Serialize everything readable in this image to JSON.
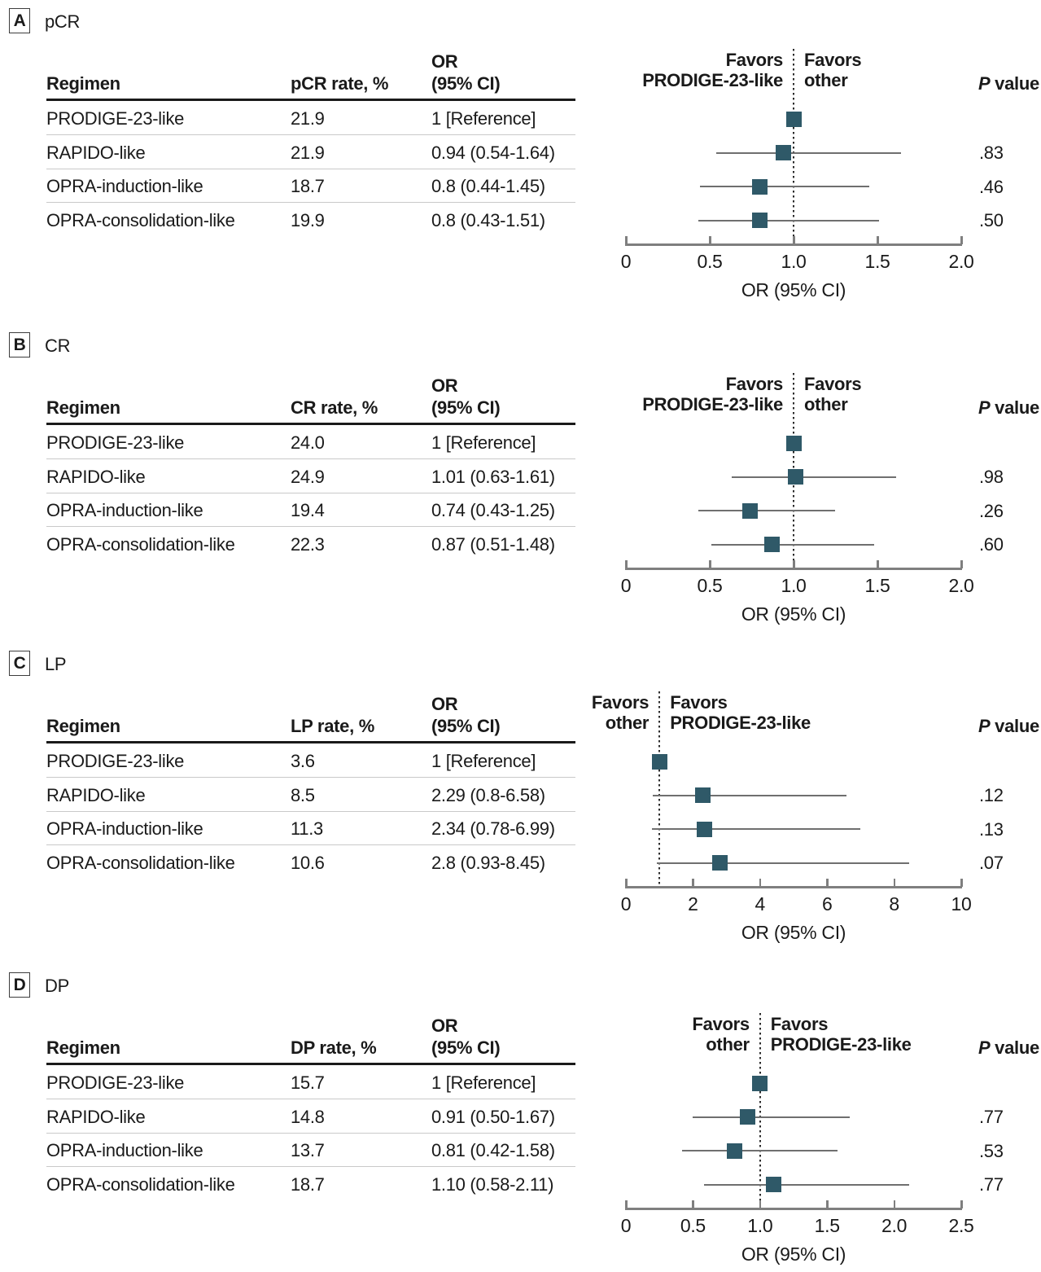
{
  "figure": {
    "marker_color": "#2f5968",
    "ci_color": "#6f6f6f",
    "axis_color": "#7f7f7f",
    "p_header_italic": "P",
    "p_header_rest": " value"
  },
  "chart_data": [
    {
      "type": "scatter",
      "subtype": "forest",
      "panel": "A",
      "title": "pCR",
      "xlabel": "OR (95% CI)",
      "xlim": [
        0,
        2.0
      ],
      "xticks": [
        0,
        0.5,
        1.0,
        1.5,
        2.0
      ],
      "xtick_labels": [
        "0",
        "0.5",
        "1.0",
        "1.5",
        "2.0"
      ],
      "ref_line": 1.0,
      "favors_left": [
        "Favors",
        "PRODIGE-23-like"
      ],
      "favors_right": [
        "Favors",
        "other"
      ],
      "col_headers": [
        "Regimen",
        "pCR rate, %",
        "OR",
        "(95% CI)"
      ],
      "rows": [
        {
          "regimen": "PRODIGE-23-like",
          "rate": "21.9",
          "or_ci": "1 [Reference]",
          "or": 1,
          "lo": null,
          "hi": null,
          "p": ""
        },
        {
          "regimen": "RAPIDO-like",
          "rate": "21.9",
          "or_ci": "0.94 (0.54-1.64)",
          "or": 0.94,
          "lo": 0.54,
          "hi": 1.64,
          "p": ".83"
        },
        {
          "regimen": "OPRA-induction-like",
          "rate": "18.7",
          "or_ci": "0.8 (0.44-1.45)",
          "or": 0.8,
          "lo": 0.44,
          "hi": 1.45,
          "p": ".46"
        },
        {
          "regimen": "OPRA-consolidation-like",
          "rate": "19.9",
          "or_ci": "0.8 (0.43-1.51)",
          "or": 0.8,
          "lo": 0.43,
          "hi": 1.51,
          "p": ".50"
        }
      ]
    },
    {
      "type": "scatter",
      "subtype": "forest",
      "panel": "B",
      "title": "CR",
      "xlabel": "OR (95% CI)",
      "xlim": [
        0,
        2.0
      ],
      "xticks": [
        0,
        0.5,
        1.0,
        1.5,
        2.0
      ],
      "xtick_labels": [
        "0",
        "0.5",
        "1.0",
        "1.5",
        "2.0"
      ],
      "ref_line": 1.0,
      "favors_left": [
        "Favors",
        "PRODIGE-23-like"
      ],
      "favors_right": [
        "Favors",
        "other"
      ],
      "col_headers": [
        "Regimen",
        "CR rate, %",
        "OR",
        "(95% CI)"
      ],
      "rows": [
        {
          "regimen": "PRODIGE-23-like",
          "rate": "24.0",
          "or_ci": "1 [Reference]",
          "or": 1,
          "lo": null,
          "hi": null,
          "p": ""
        },
        {
          "regimen": "RAPIDO-like",
          "rate": "24.9",
          "or_ci": "1.01 (0.63-1.61)",
          "or": 1.01,
          "lo": 0.63,
          "hi": 1.61,
          "p": ".98"
        },
        {
          "regimen": "OPRA-induction-like",
          "rate": "19.4",
          "or_ci": "0.74 (0.43-1.25)",
          "or": 0.74,
          "lo": 0.43,
          "hi": 1.25,
          "p": ".26"
        },
        {
          "regimen": "OPRA-consolidation-like",
          "rate": "22.3",
          "or_ci": "0.87 (0.51-1.48)",
          "or": 0.87,
          "lo": 0.51,
          "hi": 1.48,
          "p": ".60"
        }
      ]
    },
    {
      "type": "scatter",
      "subtype": "forest",
      "panel": "C",
      "title": "LP",
      "xlabel": "OR (95% CI)",
      "xlim": [
        0,
        10
      ],
      "xticks": [
        0,
        2,
        4,
        6,
        8,
        10
      ],
      "xtick_labels": [
        "0",
        "2",
        "4",
        "6",
        "8",
        "10"
      ],
      "ref_line": 1.0,
      "favors_left": [
        "Favors",
        "other"
      ],
      "favors_right": [
        "Favors",
        "PRODIGE-23-like"
      ],
      "col_headers": [
        "Regimen",
        "LP rate, %",
        "OR",
        "(95% CI)"
      ],
      "rows": [
        {
          "regimen": "PRODIGE-23-like",
          "rate": "3.6",
          "or_ci": "1 [Reference]",
          "or": 1,
          "lo": null,
          "hi": null,
          "p": ""
        },
        {
          "regimen": "RAPIDO-like",
          "rate": "8.5",
          "or_ci": "2.29 (0.8-6.58)",
          "or": 2.29,
          "lo": 0.8,
          "hi": 6.58,
          "p": ".12"
        },
        {
          "regimen": "OPRA-induction-like",
          "rate": "11.3",
          "or_ci": "2.34 (0.78-6.99)",
          "or": 2.34,
          "lo": 0.78,
          "hi": 6.99,
          "p": ".13"
        },
        {
          "regimen": "OPRA-consolidation-like",
          "rate": "10.6",
          "or_ci": "2.8 (0.93-8.45)",
          "or": 2.8,
          "lo": 0.93,
          "hi": 8.45,
          "p": ".07"
        }
      ]
    },
    {
      "type": "scatter",
      "subtype": "forest",
      "panel": "D",
      "title": "DP",
      "xlabel": "OR (95% CI)",
      "xlim": [
        0,
        2.5
      ],
      "xticks": [
        0,
        0.5,
        1.0,
        1.5,
        2.0,
        2.5
      ],
      "xtick_labels": [
        "0",
        "0.5",
        "1.0",
        "1.5",
        "2.0",
        "2.5"
      ],
      "ref_line": 1.0,
      "favors_left": [
        "Favors",
        "other"
      ],
      "favors_right": [
        "Favors",
        "PRODIGE-23-like"
      ],
      "col_headers": [
        "Regimen",
        "DP rate, %",
        "OR",
        "(95% CI)"
      ],
      "rows": [
        {
          "regimen": "PRODIGE-23-like",
          "rate": "15.7",
          "or_ci": "1 [Reference]",
          "or": 1,
          "lo": null,
          "hi": null,
          "p": ""
        },
        {
          "regimen": "RAPIDO-like",
          "rate": "14.8",
          "or_ci": "0.91 (0.50-1.67)",
          "or": 0.91,
          "lo": 0.5,
          "hi": 1.67,
          "p": ".77"
        },
        {
          "regimen": "OPRA-induction-like",
          "rate": "13.7",
          "or_ci": "0.81 (0.42-1.58)",
          "or": 0.81,
          "lo": 0.42,
          "hi": 1.58,
          "p": ".53"
        },
        {
          "regimen": "OPRA-consolidation-like",
          "rate": "18.7",
          "or_ci": "1.10 (0.58-2.11)",
          "or": 1.1,
          "lo": 0.58,
          "hi": 2.11,
          "p": ".77"
        }
      ]
    }
  ]
}
